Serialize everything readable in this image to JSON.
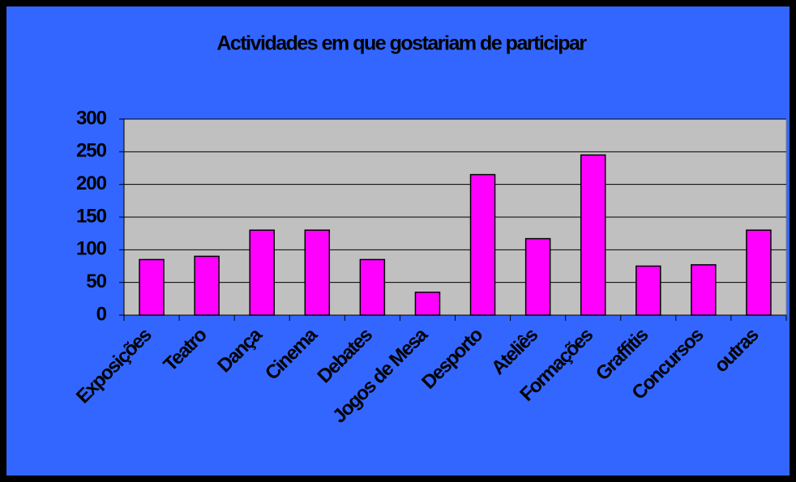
{
  "chart_data": {
    "type": "bar",
    "title": "Actividades em que gostariam de participar",
    "categories": [
      "Exposições",
      "Teatro",
      "Dança",
      "Cinema",
      "Debates",
      "Jogos de Mesa",
      "Desporto",
      "Ateliês",
      "Formações",
      "Graffitis",
      "Concursos",
      "outras"
    ],
    "values": [
      85,
      90,
      130,
      130,
      85,
      35,
      215,
      117,
      245,
      75,
      77,
      130
    ],
    "color": "#ff00ff",
    "ylim": [
      0,
      300
    ],
    "yticks": [
      0,
      50,
      100,
      150,
      200,
      250,
      300
    ],
    "grid": true
  }
}
